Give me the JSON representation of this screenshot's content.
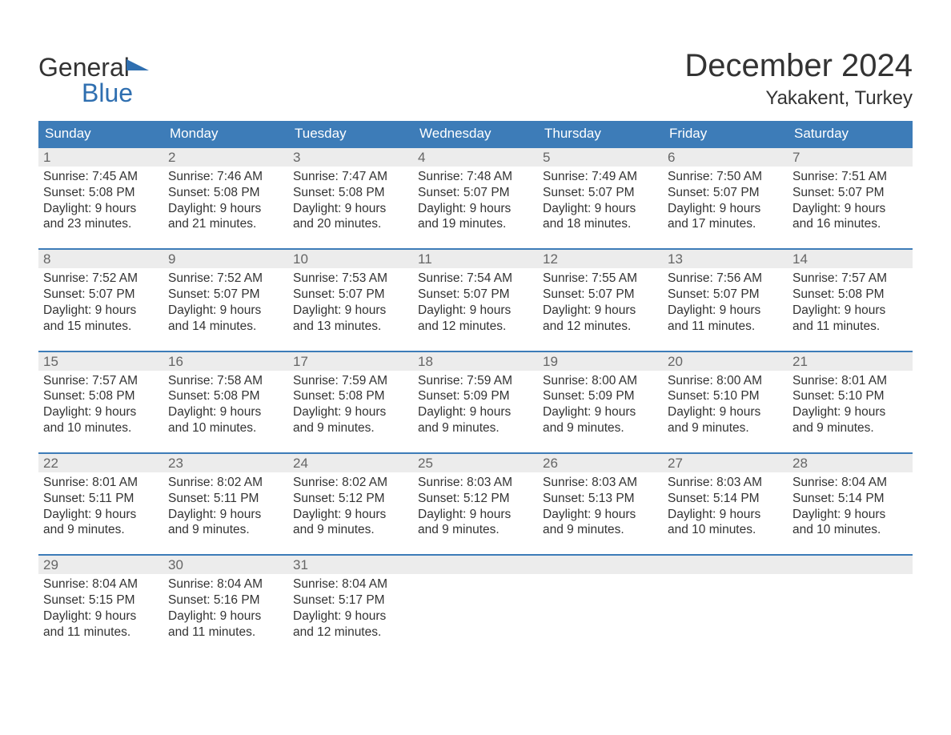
{
  "brand": {
    "text1": "General",
    "text2": "Blue",
    "accent_color": "#2f6fb0"
  },
  "title": "December 2024",
  "location": "Yakakent, Turkey",
  "colors": {
    "header_bg": "#3d7cb8",
    "header_text": "#ffffff",
    "week_border": "#3d7cb8",
    "daynum_bg": "#ececec",
    "daynum_text": "#666666",
    "body_text": "#333333",
    "page_bg": "#ffffff"
  },
  "typography": {
    "title_fontsize": 40,
    "subtitle_fontsize": 24,
    "weekday_fontsize": 17,
    "daynum_fontsize": 17,
    "body_fontsize": 15.5
  },
  "weekdays": [
    "Sunday",
    "Monday",
    "Tuesday",
    "Wednesday",
    "Thursday",
    "Friday",
    "Saturday"
  ],
  "weeks": [
    [
      {
        "num": "1",
        "sunrise": "Sunrise: 7:45 AM",
        "sunset": "Sunset: 5:08 PM",
        "day1": "Daylight: 9 hours",
        "day2": "and 23 minutes."
      },
      {
        "num": "2",
        "sunrise": "Sunrise: 7:46 AM",
        "sunset": "Sunset: 5:08 PM",
        "day1": "Daylight: 9 hours",
        "day2": "and 21 minutes."
      },
      {
        "num": "3",
        "sunrise": "Sunrise: 7:47 AM",
        "sunset": "Sunset: 5:08 PM",
        "day1": "Daylight: 9 hours",
        "day2": "and 20 minutes."
      },
      {
        "num": "4",
        "sunrise": "Sunrise: 7:48 AM",
        "sunset": "Sunset: 5:07 PM",
        "day1": "Daylight: 9 hours",
        "day2": "and 19 minutes."
      },
      {
        "num": "5",
        "sunrise": "Sunrise: 7:49 AM",
        "sunset": "Sunset: 5:07 PM",
        "day1": "Daylight: 9 hours",
        "day2": "and 18 minutes."
      },
      {
        "num": "6",
        "sunrise": "Sunrise: 7:50 AM",
        "sunset": "Sunset: 5:07 PM",
        "day1": "Daylight: 9 hours",
        "day2": "and 17 minutes."
      },
      {
        "num": "7",
        "sunrise": "Sunrise: 7:51 AM",
        "sunset": "Sunset: 5:07 PM",
        "day1": "Daylight: 9 hours",
        "day2": "and 16 minutes."
      }
    ],
    [
      {
        "num": "8",
        "sunrise": "Sunrise: 7:52 AM",
        "sunset": "Sunset: 5:07 PM",
        "day1": "Daylight: 9 hours",
        "day2": "and 15 minutes."
      },
      {
        "num": "9",
        "sunrise": "Sunrise: 7:52 AM",
        "sunset": "Sunset: 5:07 PM",
        "day1": "Daylight: 9 hours",
        "day2": "and 14 minutes."
      },
      {
        "num": "10",
        "sunrise": "Sunrise: 7:53 AM",
        "sunset": "Sunset: 5:07 PM",
        "day1": "Daylight: 9 hours",
        "day2": "and 13 minutes."
      },
      {
        "num": "11",
        "sunrise": "Sunrise: 7:54 AM",
        "sunset": "Sunset: 5:07 PM",
        "day1": "Daylight: 9 hours",
        "day2": "and 12 minutes."
      },
      {
        "num": "12",
        "sunrise": "Sunrise: 7:55 AM",
        "sunset": "Sunset: 5:07 PM",
        "day1": "Daylight: 9 hours",
        "day2": "and 12 minutes."
      },
      {
        "num": "13",
        "sunrise": "Sunrise: 7:56 AM",
        "sunset": "Sunset: 5:07 PM",
        "day1": "Daylight: 9 hours",
        "day2": "and 11 minutes."
      },
      {
        "num": "14",
        "sunrise": "Sunrise: 7:57 AM",
        "sunset": "Sunset: 5:08 PM",
        "day1": "Daylight: 9 hours",
        "day2": "and 11 minutes."
      }
    ],
    [
      {
        "num": "15",
        "sunrise": "Sunrise: 7:57 AM",
        "sunset": "Sunset: 5:08 PM",
        "day1": "Daylight: 9 hours",
        "day2": "and 10 minutes."
      },
      {
        "num": "16",
        "sunrise": "Sunrise: 7:58 AM",
        "sunset": "Sunset: 5:08 PM",
        "day1": "Daylight: 9 hours",
        "day2": "and 10 minutes."
      },
      {
        "num": "17",
        "sunrise": "Sunrise: 7:59 AM",
        "sunset": "Sunset: 5:08 PM",
        "day1": "Daylight: 9 hours",
        "day2": "and 9 minutes."
      },
      {
        "num": "18",
        "sunrise": "Sunrise: 7:59 AM",
        "sunset": "Sunset: 5:09 PM",
        "day1": "Daylight: 9 hours",
        "day2": "and 9 minutes."
      },
      {
        "num": "19",
        "sunrise": "Sunrise: 8:00 AM",
        "sunset": "Sunset: 5:09 PM",
        "day1": "Daylight: 9 hours",
        "day2": "and 9 minutes."
      },
      {
        "num": "20",
        "sunrise": "Sunrise: 8:00 AM",
        "sunset": "Sunset: 5:10 PM",
        "day1": "Daylight: 9 hours",
        "day2": "and 9 minutes."
      },
      {
        "num": "21",
        "sunrise": "Sunrise: 8:01 AM",
        "sunset": "Sunset: 5:10 PM",
        "day1": "Daylight: 9 hours",
        "day2": "and 9 minutes."
      }
    ],
    [
      {
        "num": "22",
        "sunrise": "Sunrise: 8:01 AM",
        "sunset": "Sunset: 5:11 PM",
        "day1": "Daylight: 9 hours",
        "day2": "and 9 minutes."
      },
      {
        "num": "23",
        "sunrise": "Sunrise: 8:02 AM",
        "sunset": "Sunset: 5:11 PM",
        "day1": "Daylight: 9 hours",
        "day2": "and 9 minutes."
      },
      {
        "num": "24",
        "sunrise": "Sunrise: 8:02 AM",
        "sunset": "Sunset: 5:12 PM",
        "day1": "Daylight: 9 hours",
        "day2": "and 9 minutes."
      },
      {
        "num": "25",
        "sunrise": "Sunrise: 8:03 AM",
        "sunset": "Sunset: 5:12 PM",
        "day1": "Daylight: 9 hours",
        "day2": "and 9 minutes."
      },
      {
        "num": "26",
        "sunrise": "Sunrise: 8:03 AM",
        "sunset": "Sunset: 5:13 PM",
        "day1": "Daylight: 9 hours",
        "day2": "and 9 minutes."
      },
      {
        "num": "27",
        "sunrise": "Sunrise: 8:03 AM",
        "sunset": "Sunset: 5:14 PM",
        "day1": "Daylight: 9 hours",
        "day2": "and 10 minutes."
      },
      {
        "num": "28",
        "sunrise": "Sunrise: 8:04 AM",
        "sunset": "Sunset: 5:14 PM",
        "day1": "Daylight: 9 hours",
        "day2": "and 10 minutes."
      }
    ],
    [
      {
        "num": "29",
        "sunrise": "Sunrise: 8:04 AM",
        "sunset": "Sunset: 5:15 PM",
        "day1": "Daylight: 9 hours",
        "day2": "and 11 minutes."
      },
      {
        "num": "30",
        "sunrise": "Sunrise: 8:04 AM",
        "sunset": "Sunset: 5:16 PM",
        "day1": "Daylight: 9 hours",
        "day2": "and 11 minutes."
      },
      {
        "num": "31",
        "sunrise": "Sunrise: 8:04 AM",
        "sunset": "Sunset: 5:17 PM",
        "day1": "Daylight: 9 hours",
        "day2": "and 12 minutes."
      },
      {
        "empty": true
      },
      {
        "empty": true
      },
      {
        "empty": true
      },
      {
        "empty": true
      }
    ]
  ]
}
